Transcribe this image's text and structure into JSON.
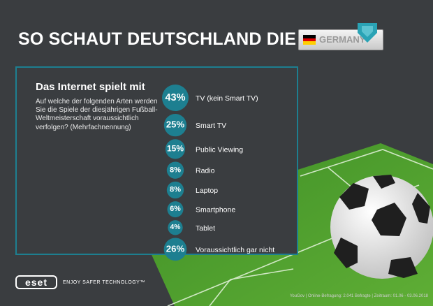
{
  "header": {
    "title": "SO SCHAUT DEUTSCHLAND DIE WM",
    "badge_label": "GERMANY"
  },
  "panel": {
    "title": "Das Internet spielt mit",
    "question": "Auf welche der folgenden Arten werden Sie die Spiele der diesjährigen Fußball-Weltmeisterschaft voraussichtlich verfolgen? (Mehrfachnennung)"
  },
  "colors": {
    "accent": "#1d7f90",
    "background": "#3a3d40",
    "grass": "#4a9a2e"
  },
  "chart_data": {
    "type": "bubble",
    "unit": "%",
    "categories": [
      "TV (kein Smart TV)",
      "Smart TV",
      "Public Viewing",
      "Radio",
      "Laptop",
      "Smartphone",
      "Tablet",
      "Voraussichtlich gar nicht"
    ],
    "values": [
      43,
      25,
      15,
      8,
      8,
      6,
      4,
      26
    ],
    "value_labels": [
      "43%",
      "25%",
      "15%",
      "8%",
      "8%",
      "6%",
      "4%",
      "26%"
    ]
  },
  "footer": {
    "logo": "eset",
    "tagline": "ENJOY SAFER TECHNOLOGY™",
    "source": "YouGov | Online-Befragung: 2.041 Befragte | Zeitraum: 01.06 - 03.06.2018"
  }
}
